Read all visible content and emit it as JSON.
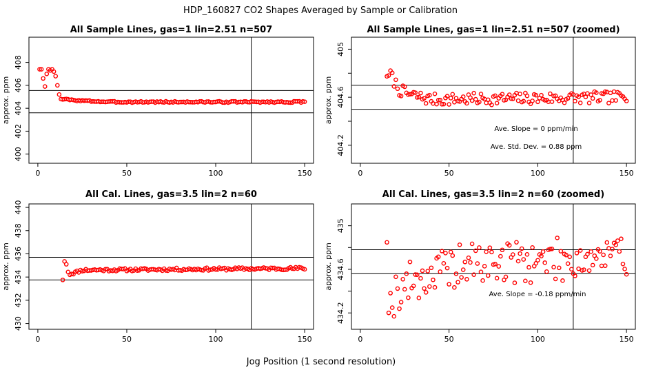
{
  "figure": {
    "title": "HDP_160827  CO2 Shapes Averaged by Sample or Calibration",
    "xlabel": "Jog Position (1 second resolution)"
  },
  "colors": {
    "points": "#ff0000",
    "lines": "#000000"
  },
  "chart_data": [
    {
      "id": "p1",
      "type": "scatter",
      "title": "All Sample Lines, gas=1 lin=2.51 n=507",
      "ylabel": "approx. ppm",
      "xlim": [
        -5,
        155
      ],
      "ylim": [
        399.2,
        410.2
      ],
      "xticks": [
        0,
        50,
        100,
        150
      ],
      "yticks": [
        400,
        402,
        404,
        406,
        408
      ],
      "hlines": [
        405.55,
        403.6
      ],
      "vline": 120,
      "series": {
        "name": "sample",
        "segments": [
          {
            "x0": 1,
            "x1": 10,
            "anchors": [
              [
                1,
                407.4
              ],
              [
                2,
                407.4
              ],
              [
                3,
                406.6
              ],
              [
                4,
                405.9
              ],
              [
                5,
                407.0
              ],
              [
                6,
                407.4
              ],
              [
                7,
                407.3
              ],
              [
                8,
                407.4
              ],
              [
                9,
                407.2
              ],
              [
                10,
                406.8
              ]
            ]
          },
          {
            "x0": 11,
            "x1": 13,
            "anchors": [
              [
                11,
                406.0
              ],
              [
                12,
                405.2
              ],
              [
                13,
                404.8
              ]
            ]
          },
          {
            "x0": 14,
            "x1": 150,
            "base": 404.6,
            "amp": 0.06,
            "seed": 3,
            "anchors": [
              [
                14,
                404.8
              ],
              [
                20,
                404.7
              ],
              [
                40,
                404.55
              ],
              [
                150,
                404.55
              ]
            ]
          }
        ]
      }
    },
    {
      "id": "p2",
      "type": "scatter",
      "title": "All Sample Lines, gas=1 lin=2.51 n=507 (zoomed)",
      "ylabel": "approx. ppm",
      "xlim": [
        -5,
        155
      ],
      "ylim": [
        404.05,
        405.1
      ],
      "xticks": [
        0,
        50,
        100,
        150
      ],
      "yticks": [
        404.2,
        404.4,
        404.6,
        404.8,
        405.0
      ],
      "yticks_labeled": [
        404.2,
        404.6,
        405.0
      ],
      "hlines": [
        404.7,
        404.5
      ],
      "vline": 120,
      "annotations": [
        "Ave. Slope =  0  ppm/min",
        "Ave. Std. Dev. =  0.88  ppm"
      ],
      "series": {
        "name": "sample zoomed",
        "segments": [
          {
            "x0": 15,
            "x1": 150,
            "base": 404.57,
            "amp": 0.05,
            "seed": 7,
            "anchors": [
              [
                15,
                404.8
              ],
              [
                16,
                404.74
              ],
              [
                17,
                404.81
              ],
              [
                18,
                404.76
              ],
              [
                22,
                404.66
              ],
              [
                28,
                404.62
              ],
              [
                40,
                404.58
              ],
              [
                150,
                404.6
              ]
            ]
          }
        ]
      }
    },
    {
      "id": "p3",
      "type": "scatter",
      "title": "All Cal. Lines, gas=3.5 lin=2 n=60",
      "ylabel": "approx. ppm",
      "xlim": [
        -5,
        155
      ],
      "ylim": [
        429.5,
        440.3
      ],
      "xticks": [
        0,
        50,
        100,
        150
      ],
      "yticks": [
        430,
        432,
        434,
        436,
        438,
        440
      ],
      "hlines": [
        435.7,
        433.75
      ],
      "vline": 120,
      "series": {
        "name": "calibration",
        "segments": [
          {
            "x0": 14,
            "x1": 16,
            "anchors": [
              [
                14,
                433.75
              ],
              [
                15,
                435.35
              ],
              [
                16,
                435.1
              ]
            ]
          },
          {
            "x0": 17,
            "x1": 150,
            "base": 434.65,
            "amp": 0.12,
            "seed": 11,
            "anchors": [
              [
                17,
                434.5
              ],
              [
                18,
                434.25
              ],
              [
                20,
                434.35
              ],
              [
                25,
                434.6
              ],
              [
                150,
                434.75
              ]
            ]
          }
        ]
      }
    },
    {
      "id": "p4",
      "type": "scatter",
      "title": "All Cal. Lines, gas=3.5 lin=2 n=60 (zoomed)",
      "ylabel": "approx. ppm",
      "xlim": [
        -5,
        155
      ],
      "ylim": [
        434.05,
        435.2
      ],
      "xticks": [
        0,
        50,
        100,
        150
      ],
      "yticks": [
        434.2,
        434.4,
        434.6,
        434.8,
        435.0
      ],
      "yticks_labeled": [
        434.2,
        434.6,
        435.0
      ],
      "hlines": [
        434.78,
        434.56
      ],
      "vline": 120,
      "annotations": [
        "Ave. Slope =  -0.18  ppm/min"
      ],
      "series": {
        "name": "calibration zoomed",
        "segments": [
          {
            "x0": 15,
            "x1": 150,
            "base": 434.6,
            "amp": 0.2,
            "seed": 19,
            "anchors": [
              [
                15,
                434.95
              ],
              [
                16,
                434.4
              ],
              [
                17,
                434.25
              ],
              [
                20,
                434.4
              ],
              [
                30,
                434.5
              ],
              [
                60,
                434.65
              ],
              [
                150,
                434.72
              ]
            ]
          }
        ]
      }
    }
  ]
}
